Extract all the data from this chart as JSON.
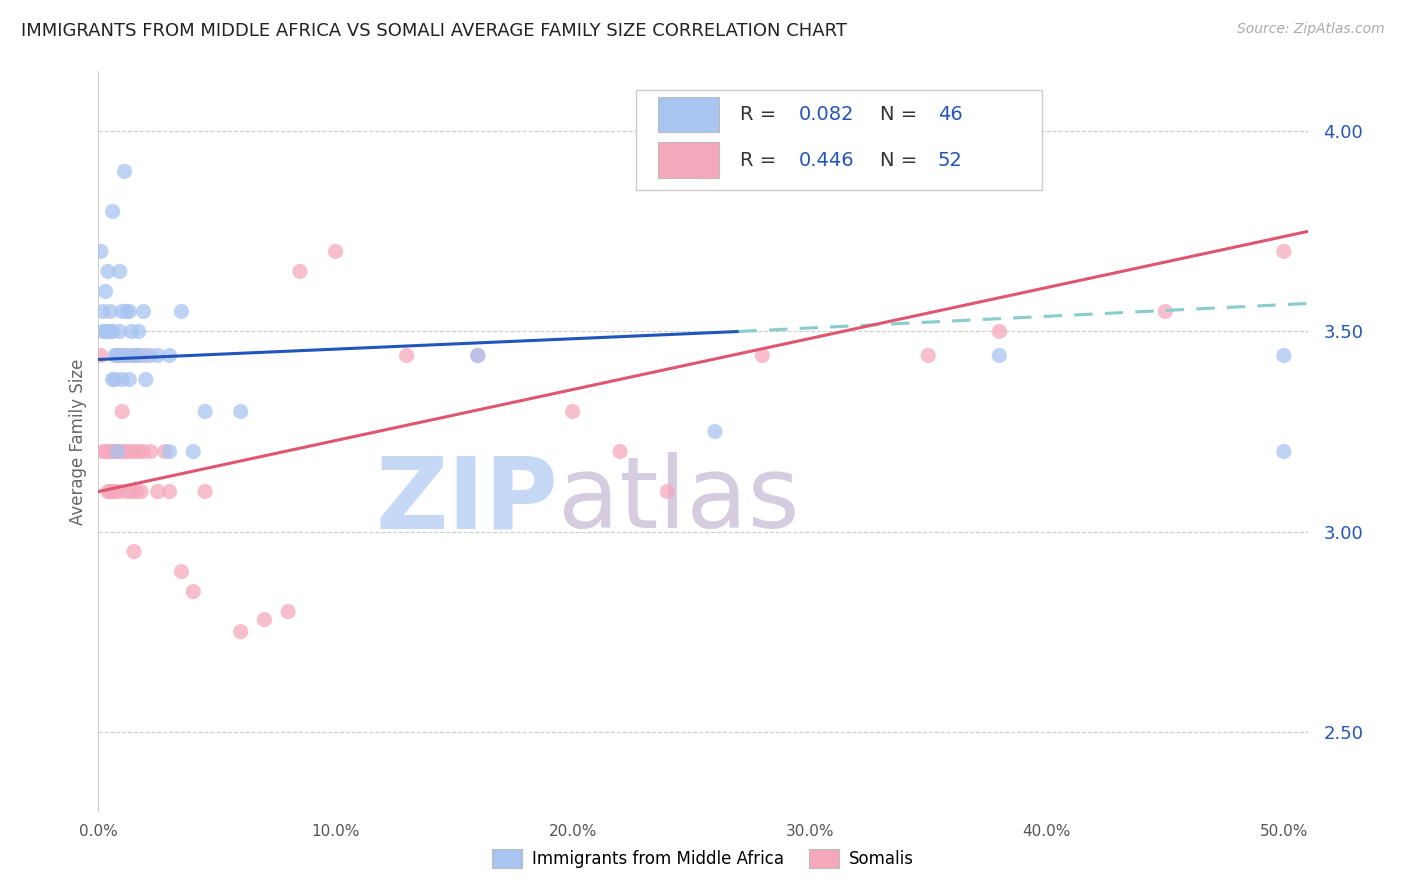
{
  "title": "IMMIGRANTS FROM MIDDLE AFRICA VS SOMALI AVERAGE FAMILY SIZE CORRELATION CHART",
  "source": "Source: ZipAtlas.com",
  "ylabel": "Average Family Size",
  "y_ticks_right": [
    2.5,
    3.0,
    3.5,
    4.0
  ],
  "blue_color": "#a8c4f0",
  "pink_color": "#f5a8bc",
  "blue_line_color": "#2255bb",
  "pink_line_color": "#e05570",
  "blue_dashed_color": "#88cccc",
  "legend_text_color": "#2255bb",
  "watermark_zip_color": "#c5d8f5",
  "watermark_atlas_color": "#d5cce0",
  "blue_scatter": [
    [
      0.001,
      3.7
    ],
    [
      0.002,
      3.55
    ],
    [
      0.002,
      3.5
    ],
    [
      0.003,
      3.5
    ],
    [
      0.003,
      3.6
    ],
    [
      0.004,
      3.5
    ],
    [
      0.004,
      3.65
    ],
    [
      0.005,
      3.5
    ],
    [
      0.005,
      3.55
    ],
    [
      0.006,
      3.38
    ],
    [
      0.006,
      3.5
    ],
    [
      0.006,
      3.8
    ],
    [
      0.007,
      3.44
    ],
    [
      0.007,
      3.38
    ],
    [
      0.008,
      3.44
    ],
    [
      0.008,
      3.2
    ],
    [
      0.009,
      3.5
    ],
    [
      0.009,
      3.65
    ],
    [
      0.01,
      3.55
    ],
    [
      0.01,
      3.38
    ],
    [
      0.011,
      3.44
    ],
    [
      0.011,
      3.9
    ],
    [
      0.012,
      3.44
    ],
    [
      0.012,
      3.55
    ],
    [
      0.013,
      3.38
    ],
    [
      0.013,
      3.55
    ],
    [
      0.014,
      3.5
    ],
    [
      0.015,
      3.44
    ],
    [
      0.016,
      3.44
    ],
    [
      0.017,
      3.5
    ],
    [
      0.018,
      3.44
    ],
    [
      0.019,
      3.55
    ],
    [
      0.02,
      3.38
    ],
    [
      0.022,
      3.44
    ],
    [
      0.025,
      3.44
    ],
    [
      0.03,
      3.44
    ],
    [
      0.03,
      3.2
    ],
    [
      0.035,
      3.55
    ],
    [
      0.04,
      3.2
    ],
    [
      0.045,
      3.3
    ],
    [
      0.06,
      3.3
    ],
    [
      0.16,
      3.44
    ],
    [
      0.26,
      3.25
    ],
    [
      0.38,
      3.44
    ],
    [
      0.5,
      3.44
    ],
    [
      0.5,
      3.2
    ]
  ],
  "pink_scatter": [
    [
      0.001,
      3.44
    ],
    [
      0.002,
      3.2
    ],
    [
      0.003,
      3.2
    ],
    [
      0.004,
      3.1
    ],
    [
      0.005,
      3.2
    ],
    [
      0.005,
      3.1
    ],
    [
      0.006,
      3.1
    ],
    [
      0.006,
      3.2
    ],
    [
      0.007,
      3.2
    ],
    [
      0.007,
      3.1
    ],
    [
      0.008,
      3.44
    ],
    [
      0.008,
      3.2
    ],
    [
      0.009,
      3.1
    ],
    [
      0.009,
      3.44
    ],
    [
      0.01,
      3.2
    ],
    [
      0.01,
      3.3
    ],
    [
      0.011,
      3.44
    ],
    [
      0.011,
      3.2
    ],
    [
      0.012,
      3.1
    ],
    [
      0.013,
      3.2
    ],
    [
      0.014,
      3.44
    ],
    [
      0.014,
      3.1
    ],
    [
      0.015,
      3.2
    ],
    [
      0.015,
      2.95
    ],
    [
      0.016,
      3.1
    ],
    [
      0.016,
      3.44
    ],
    [
      0.017,
      3.2
    ],
    [
      0.018,
      3.1
    ],
    [
      0.019,
      3.2
    ],
    [
      0.02,
      3.44
    ],
    [
      0.022,
      3.2
    ],
    [
      0.025,
      3.1
    ],
    [
      0.028,
      3.2
    ],
    [
      0.03,
      3.1
    ],
    [
      0.035,
      2.9
    ],
    [
      0.04,
      2.85
    ],
    [
      0.045,
      3.1
    ],
    [
      0.06,
      2.75
    ],
    [
      0.07,
      2.78
    ],
    [
      0.08,
      2.8
    ],
    [
      0.085,
      3.65
    ],
    [
      0.1,
      3.7
    ],
    [
      0.13,
      3.44
    ],
    [
      0.16,
      3.44
    ],
    [
      0.2,
      3.3
    ],
    [
      0.22,
      3.2
    ],
    [
      0.24,
      3.1
    ],
    [
      0.28,
      3.44
    ],
    [
      0.35,
      3.44
    ],
    [
      0.38,
      3.5
    ],
    [
      0.45,
      3.55
    ],
    [
      0.5,
      3.7
    ]
  ],
  "xlim": [
    0.0,
    0.51
  ],
  "ylim": [
    2.3,
    4.15
  ],
  "blue_trendline_solid": [
    [
      0.0,
      3.43
    ],
    [
      0.27,
      3.5
    ]
  ],
  "blue_trendline_dashed": [
    [
      0.27,
      3.5
    ],
    [
      0.51,
      3.57
    ]
  ],
  "pink_trendline": [
    [
      0.0,
      3.1
    ],
    [
      0.51,
      3.75
    ]
  ],
  "x_tick_positions": [
    0.0,
    0.1,
    0.2,
    0.3,
    0.4,
    0.5
  ],
  "x_tick_labels": [
    "0.0%",
    "10.0%",
    "20.0%",
    "30.0%",
    "40.0%",
    "50.0%"
  ],
  "legend_r1": "R = 0.082",
  "legend_n1": "N = 46",
  "legend_r2": "R = 0.446",
  "legend_n2": "N = 52"
}
